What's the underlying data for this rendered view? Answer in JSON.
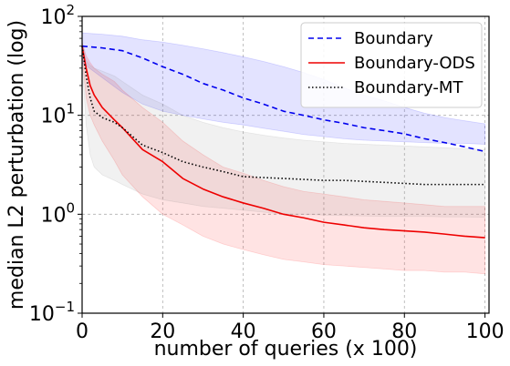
{
  "chart_data": {
    "type": "line",
    "xlabel": "number of queries (x 100)",
    "ylabel": "median L2 perturbation (log)",
    "xlim": [
      0,
      101
    ],
    "ylim": [
      0.1,
      100
    ],
    "yscale": "log",
    "x_ticks": [
      0,
      20,
      40,
      60,
      80,
      100
    ],
    "x_tick_labels": [
      "0",
      "20",
      "40",
      "60",
      "80",
      "100"
    ],
    "y_ticks": [
      0.1,
      1,
      10,
      100
    ],
    "y_tick_labels": [
      {
        "base": "10",
        "exp": "−1"
      },
      {
        "base": "10",
        "exp": "0"
      },
      {
        "base": "10",
        "exp": "1"
      },
      {
        "base": "10",
        "exp": "2"
      }
    ],
    "grid": true,
    "legend_position": "top-right",
    "series": [
      {
        "name": "Boundary",
        "color": "#0000ee",
        "fill": "#0000ff",
        "style": "dashed",
        "x": [
          0,
          5,
          10,
          15,
          20,
          25,
          30,
          35,
          40,
          45,
          50,
          55,
          60,
          65,
          70,
          75,
          80,
          85,
          90,
          95,
          100
        ],
        "y": [
          50,
          48,
          45,
          38,
          31,
          26,
          21,
          18,
          15,
          13,
          11,
          10,
          9,
          8.3,
          7.5,
          7,
          6.5,
          5.8,
          5.3,
          4.8,
          4.3
        ],
        "upper": [
          68,
          66,
          63,
          58,
          55,
          51,
          47,
          43,
          39,
          35,
          31,
          27,
          23,
          19,
          16,
          14,
          12,
          10.5,
          9.5,
          8.8,
          8.2
        ],
        "lower": [
          34,
          24,
          17,
          13,
          11,
          10,
          9.2,
          8.5,
          8,
          7.4,
          6.9,
          6.4,
          6.1,
          5.8,
          5.6,
          5.5,
          5.4,
          5.3,
          5.2,
          5.2,
          5.1
        ]
      },
      {
        "name": "Boundary-ODS",
        "color": "#ee0000",
        "fill": "#ff0000",
        "style": "solid",
        "x": [
          0,
          1,
          2,
          3,
          5,
          8,
          10,
          15,
          20,
          25,
          30,
          35,
          40,
          45,
          50,
          55,
          60,
          65,
          70,
          75,
          80,
          85,
          90,
          95,
          100
        ],
        "y": [
          50,
          30,
          20,
          16,
          12,
          9,
          7.5,
          4.5,
          3.4,
          2.3,
          1.8,
          1.5,
          1.3,
          1.15,
          1.0,
          0.92,
          0.83,
          0.78,
          0.73,
          0.7,
          0.68,
          0.66,
          0.63,
          0.6,
          0.58
        ],
        "upper": [
          55,
          40,
          34,
          30,
          26,
          22,
          18,
          12,
          8.5,
          5.5,
          4.0,
          3.0,
          2.6,
          2.2,
          1.9,
          1.7,
          1.6,
          1.5,
          1.4,
          1.35,
          1.3,
          1.25,
          1.2,
          1.2,
          1.2
        ],
        "lower": [
          40,
          15,
          10,
          8,
          5.5,
          3.5,
          2.5,
          1.5,
          1.0,
          0.78,
          0.6,
          0.5,
          0.44,
          0.39,
          0.35,
          0.33,
          0.31,
          0.3,
          0.29,
          0.28,
          0.27,
          0.27,
          0.26,
          0.26,
          0.25
        ]
      },
      {
        "name": "Boundary-MT",
        "color": "#000000",
        "fill": "#808080",
        "style": "dotted",
        "x": [
          0,
          1,
          2,
          3,
          5,
          8,
          10,
          15,
          20,
          25,
          30,
          35,
          40,
          45,
          50,
          55,
          60,
          65,
          70,
          75,
          80,
          85,
          90,
          95,
          100
        ],
        "y": [
          50,
          25,
          15,
          11,
          9.5,
          8.5,
          7.5,
          5.0,
          4.2,
          3.4,
          3.0,
          2.7,
          2.4,
          2.35,
          2.3,
          2.25,
          2.2,
          2.2,
          2.15,
          2.1,
          2.05,
          2.0,
          2.0,
          2.0,
          2.0
        ],
        "upper": [
          55,
          36,
          32,
          30,
          28,
          25,
          22,
          16,
          13,
          10,
          8.5,
          7.5,
          6.8,
          6.3,
          5.9,
          5.6,
          5.4,
          5.2,
          5.1,
          5.0,
          4.9,
          4.8,
          4.7,
          4.6,
          4.5
        ],
        "lower": [
          35,
          8,
          4,
          3.0,
          2.5,
          2.2,
          2.0,
          1.6,
          1.4,
          1.3,
          1.2,
          1.15,
          1.1,
          1.05,
          1.0,
          1.0,
          0.98,
          0.97,
          0.96,
          0.95,
          0.95,
          0.95,
          0.94,
          0.94,
          0.93
        ]
      }
    ]
  }
}
